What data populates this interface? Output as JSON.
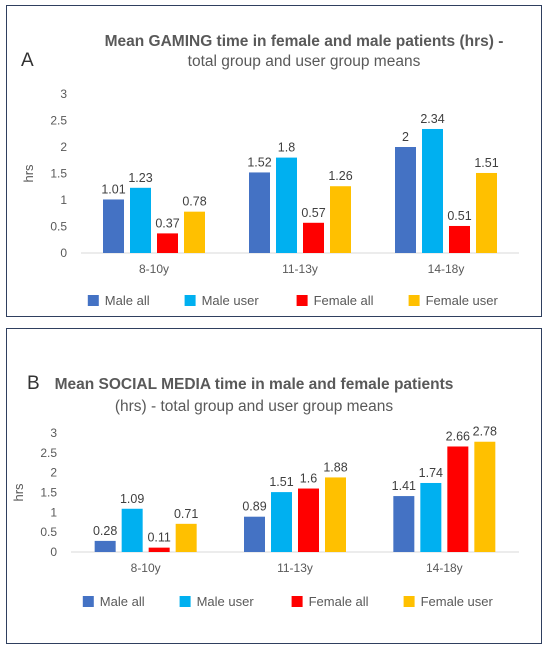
{
  "colors": {
    "male_all": "#4472C4",
    "male_user": "#00B0F0",
    "female_all": "#FF0000",
    "female_user": "#FFC000",
    "axis_text": "#595959",
    "grid": "#d9d9d9",
    "border": "#2f3f5f"
  },
  "chart_data": [
    {
      "type": "bar",
      "panel_letter": "A",
      "title_line1": "Mean GAMING  time in female and male patients (hrs) -",
      "title_line2": "total group and user group means",
      "title": "Mean GAMING  time in female and male patients (hrs) - total group and user group means",
      "ylabel": "hrs",
      "xlabel": "",
      "ylim": [
        0,
        3
      ],
      "yticks": [
        "0",
        "0.5",
        "1",
        "1.5",
        "2",
        "2.5",
        "3"
      ],
      "categories": [
        "8-10y",
        "11-13y",
        "14-18y"
      ],
      "grid": false,
      "legend_position": "bottom",
      "series": [
        {
          "name": "Male all",
          "values": [
            1.01,
            1.52,
            2
          ],
          "labels": [
            "1.01",
            "1.52",
            "2"
          ]
        },
        {
          "name": "Male  user",
          "values": [
            1.23,
            1.8,
            2.34
          ],
          "labels": [
            "1.23",
            "1.8",
            "2.34"
          ]
        },
        {
          "name": "Female all",
          "values": [
            0.37,
            0.57,
            0.51
          ],
          "labels": [
            "0.37",
            "0.57",
            "0.51"
          ]
        },
        {
          "name": "Female user",
          "values": [
            0.78,
            1.26,
            1.51
          ],
          "labels": [
            "0.78",
            "1.26",
            "1.51"
          ]
        }
      ]
    },
    {
      "type": "bar",
      "panel_letter": "B",
      "title_line1": "Mean SOCIAL MEDIA time in male and female patients",
      "title_line2": "(hrs)  - total group and user group means",
      "title": "Mean SOCIAL MEDIA time in male and female patients (hrs)  - total group and user group means",
      "ylabel": "hrs",
      "xlabel": "",
      "ylim": [
        0,
        3
      ],
      "yticks": [
        "0",
        "0.5",
        "1",
        "1.5",
        "2",
        "2.5",
        "3"
      ],
      "categories": [
        "8-10y",
        "11-13y",
        "14-18y"
      ],
      "grid": false,
      "legend_position": "bottom",
      "series": [
        {
          "name": "Male all",
          "values": [
            0.28,
            0.89,
            1.41
          ],
          "labels": [
            "0.28",
            "0.89",
            "1.41"
          ]
        },
        {
          "name": "Male  user",
          "values": [
            1.09,
            1.51,
            1.74
          ],
          "labels": [
            "1.09",
            "1.51",
            "1.74"
          ]
        },
        {
          "name": "Female all",
          "values": [
            0.11,
            1.6,
            2.66
          ],
          "labels": [
            "0.11",
            "1.6",
            "2.66"
          ]
        },
        {
          "name": "Female user",
          "values": [
            0.71,
            1.88,
            2.78
          ],
          "labels": [
            "0.71",
            "1.88",
            "2.78"
          ]
        }
      ]
    }
  ]
}
